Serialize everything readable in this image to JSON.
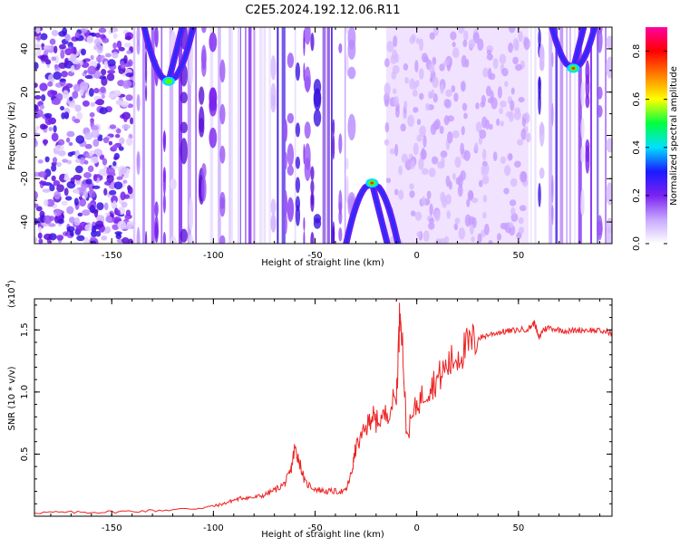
{
  "title": "C2E5.2024.192.12.06.R11",
  "chart_data": [
    {
      "type": "heatmap",
      "xlabel": "Height of straight line (km)",
      "ylabel": "Frequency (Hz)",
      "xlim": [
        -188,
        96
      ],
      "ylim": [
        -50,
        50
      ],
      "x_ticks": [
        -150,
        -100,
        -50,
        0,
        50
      ],
      "y_ticks": [
        -40,
        -20,
        0,
        20,
        40
      ],
      "colorbar": {
        "label": "Normalized spectral amplitude",
        "range": [
          0.0,
          0.9
        ],
        "ticks": [
          0.0,
          0.2,
          0.4,
          0.6,
          0.8
        ],
        "colormap": [
          "#ffffff",
          "#c8a8ff",
          "#7a22f0",
          "#1a1aff",
          "#00e0ff",
          "#00ff40",
          "#ffff00",
          "#ff8000",
          "#ff0000",
          "#ff00a0"
        ]
      },
      "features": [
        {
          "kind": "cusp",
          "x": -122,
          "apex_freq": 25,
          "opens": "up",
          "peak_amplitude": 0.45
        },
        {
          "kind": "cusp",
          "x": -22,
          "apex_freq": -22,
          "opens": "down",
          "peak_amplitude": 0.65
        },
        {
          "kind": "cusp",
          "x": 77,
          "apex_freq": 31,
          "opens": "up",
          "peak_amplitude": 0.7
        }
      ],
      "regions": [
        {
          "x_range": [
            -188,
            -140
          ],
          "pattern": "dense speckle"
        },
        {
          "x_range": [
            -140,
            -30
          ],
          "pattern": "vertical streaks"
        },
        {
          "x_range": [
            -15,
            55
          ],
          "pattern": "light diffuse texture"
        },
        {
          "x_range": [
            55,
            96
          ],
          "pattern": "vertical streaks"
        }
      ]
    },
    {
      "type": "line",
      "xlabel": "Height of straight line (km)",
      "ylabel": "SNR (10 * v/v)",
      "multiplier_label": "(x10",
      "multiplier_exponent": "4",
      "multiplier_close": ")",
      "xlim": [
        -188,
        96
      ],
      "ylim": [
        0,
        17500
      ],
      "x_ticks": [
        -150,
        -100,
        -50,
        0,
        50
      ],
      "y_ticks": [
        5000,
        10000,
        15000
      ],
      "y_tick_labels": [
        "0.5",
        "1.0",
        "1.5"
      ],
      "color": "#ee2222",
      "x": [
        -188,
        -170,
        -150,
        -130,
        -110,
        -100,
        -95,
        -90,
        -85,
        -80,
        -75,
        -70,
        -65,
        -62,
        -60,
        -58,
        -55,
        -50,
        -45,
        -40,
        -35,
        -32,
        -30,
        -25,
        -22,
        -20,
        -15,
        -10,
        -8,
        -5,
        0,
        5,
        10,
        15,
        20,
        25,
        30,
        35,
        40,
        45,
        50,
        55,
        58,
        60,
        62,
        65,
        70,
        75,
        80,
        85,
        90,
        96
      ],
      "values": [
        300,
        300,
        350,
        450,
        600,
        800,
        1000,
        1300,
        1500,
        1500,
        1700,
        2100,
        2600,
        3600,
        5500,
        4600,
        2700,
        2200,
        2000,
        2000,
        2000,
        3500,
        5500,
        7000,
        8200,
        7600,
        8200,
        9700,
        17500,
        6500,
        9000,
        10200,
        11000,
        12100,
        12900,
        13700,
        14300,
        14600,
        14800,
        14900,
        15000,
        15100,
        15600,
        14300,
        15000,
        15200,
        15000,
        14900,
        15000,
        15000,
        14900,
        14800
      ]
    }
  ]
}
